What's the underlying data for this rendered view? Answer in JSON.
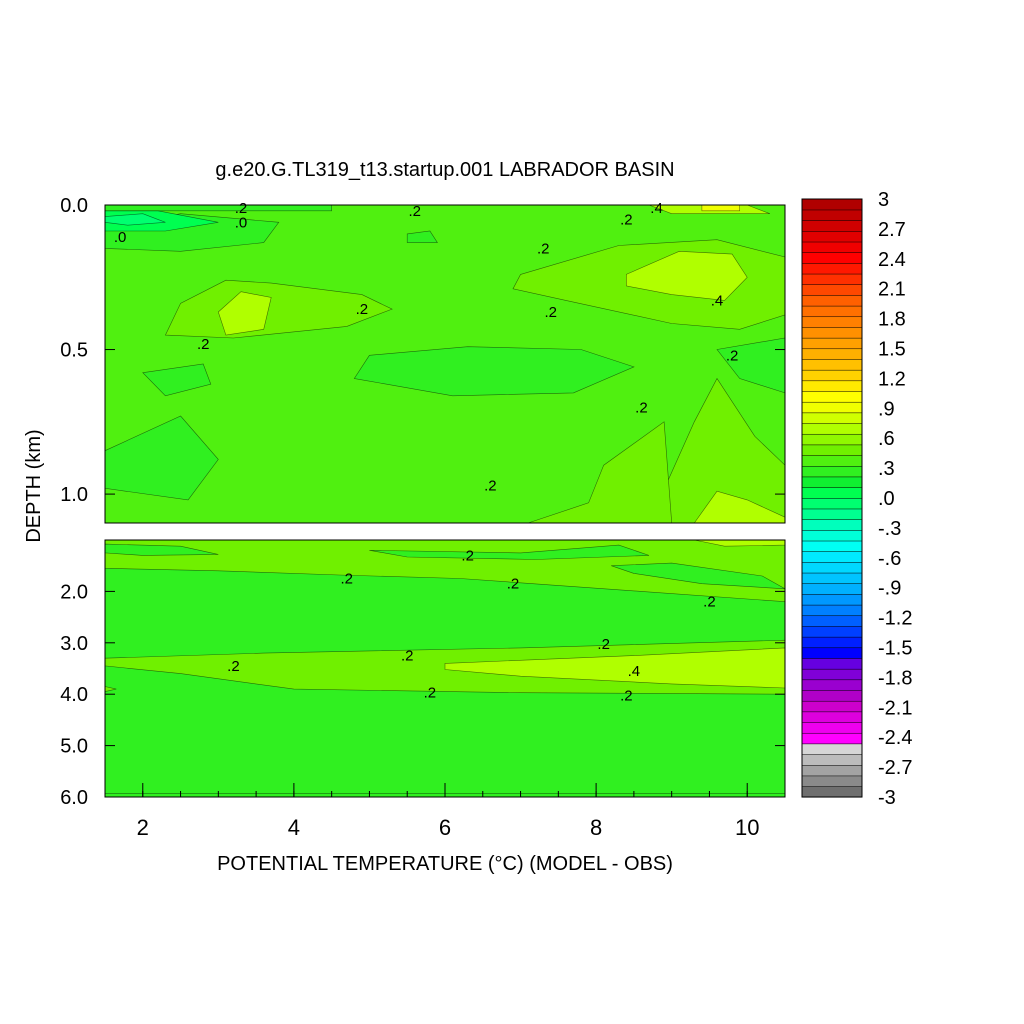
{
  "chart_data": {
    "type": "heatmap",
    "title": "g.e20.G.TL319_t13.startup.001 LABRADOR BASIN",
    "xlabel": "POTENTIAL TEMPERATURE (°C) (MODEL - OBS)",
    "ylabel": "DEPTH (km)",
    "xlim": [
      1.5,
      10.5
    ],
    "x_ticks": [
      "2",
      "4",
      "6",
      "8",
      "10"
    ],
    "x_tick_values": [
      2,
      4,
      6,
      8,
      10
    ],
    "x_minor_step": 0.5,
    "panels": [
      {
        "name": "upper",
        "ylim": [
          0.0,
          1.1
        ],
        "y_ticks": [
          "0.0",
          "0.5",
          "1.0"
        ],
        "y_tick_values": [
          0.0,
          0.5,
          1.0
        ],
        "background_value": 0.15,
        "regions": [
          {
            "value": 0.25,
            "points": [
              [
                3.7,
                0.27
              ],
              [
                4.9,
                0.31
              ],
              [
                5.3,
                0.36
              ],
              [
                4.7,
                0.42
              ],
              [
                3.2,
                0.46
              ],
              [
                2.3,
                0.45
              ],
              [
                2.5,
                0.34
              ],
              [
                3.1,
                0.26
              ]
            ]
          },
          {
            "value": 0.45,
            "points": [
              [
                3.3,
                0.3
              ],
              [
                3.7,
                0.32
              ],
              [
                3.6,
                0.43
              ],
              [
                3.1,
                0.45
              ],
              [
                3.0,
                0.37
              ]
            ]
          },
          {
            "value": 0.25,
            "points": [
              [
                7.0,
                0.24
              ],
              [
                8.3,
                0.14
              ],
              [
                9.6,
                0.12
              ],
              [
                10.5,
                0.18
              ],
              [
                10.5,
                0.38
              ],
              [
                9.9,
                0.43
              ],
              [
                9.0,
                0.41
              ],
              [
                7.6,
                0.33
              ],
              [
                6.9,
                0.29
              ]
            ]
          },
          {
            "value": 0.45,
            "points": [
              [
                8.4,
                0.24
              ],
              [
                9.1,
                0.16
              ],
              [
                9.8,
                0.17
              ],
              [
                10.0,
                0.25
              ],
              [
                9.7,
                0.33
              ],
              [
                9.0,
                0.31
              ],
              [
                8.4,
                0.28
              ]
            ]
          },
          {
            "value": 0.05,
            "points": [
              [
                5.0,
                0.52
              ],
              [
                6.3,
                0.49
              ],
              [
                7.8,
                0.5
              ],
              [
                8.5,
                0.56
              ],
              [
                7.7,
                0.65
              ],
              [
                6.1,
                0.66
              ],
              [
                4.8,
                0.6
              ]
            ]
          },
          {
            "value": 0.05,
            "points": [
              [
                1.5,
                0.85
              ],
              [
                2.5,
                0.73
              ],
              [
                3.0,
                0.88
              ],
              [
                2.6,
                1.02
              ],
              [
                1.5,
                0.98
              ]
            ]
          },
          {
            "value": 0.05,
            "points": [
              [
                2.0,
                0.58
              ],
              [
                2.8,
                0.55
              ],
              [
                2.9,
                0.62
              ],
              [
                2.3,
                0.66
              ]
            ]
          },
          {
            "value": 0.05,
            "points": [
              [
                9.6,
                0.5
              ],
              [
                10.5,
                0.46
              ],
              [
                10.5,
                0.65
              ],
              [
                9.9,
                0.6
              ]
            ]
          },
          {
            "value": 0.25,
            "points": [
              [
                8.7,
                1.1
              ],
              [
                9.3,
                0.75
              ],
              [
                9.6,
                0.6
              ],
              [
                10.1,
                0.8
              ],
              [
                10.5,
                0.9
              ],
              [
                10.5,
                1.1
              ]
            ]
          },
          {
            "value": 0.45,
            "points": [
              [
                9.3,
                1.1
              ],
              [
                9.6,
                0.99
              ],
              [
                10.0,
                1.02
              ],
              [
                10.5,
                1.08
              ],
              [
                10.5,
                1.1
              ]
            ]
          },
          {
            "value": 0.25,
            "points": [
              [
                7.1,
                1.1
              ],
              [
                7.9,
                1.03
              ],
              [
                8.1,
                0.9
              ],
              [
                8.9,
                0.75
              ],
              [
                9.0,
                1.1
              ]
            ]
          },
          {
            "value": 0.05,
            "points": [
              [
                1.5,
                0.08
              ],
              [
                2.5,
                0.03
              ],
              [
                3.8,
                0.06
              ],
              [
                3.6,
                0.13
              ],
              [
                2.5,
                0.16
              ],
              [
                1.5,
                0.15
              ]
            ]
          },
          {
            "value": -0.12,
            "points": [
              [
                1.5,
                0.02
              ],
              [
                2.2,
                0.02
              ],
              [
                3.0,
                0.06
              ],
              [
                2.3,
                0.09
              ],
              [
                1.5,
                0.09
              ]
            ]
          },
          {
            "value": -0.28,
            "points": [
              [
                1.5,
                0.04
              ],
              [
                2.0,
                0.03
              ],
              [
                2.3,
                0.06
              ],
              [
                1.8,
                0.07
              ],
              [
                1.5,
                0.06
              ]
            ]
          },
          {
            "value": 0.05,
            "points": [
              [
                5.5,
                0.1
              ],
              [
                5.8,
                0.09
              ],
              [
                5.9,
                0.13
              ],
              [
                5.5,
                0.13
              ]
            ]
          },
          {
            "value": 0.05,
            "points": [
              [
                1.5,
                0.0
              ],
              [
                4.5,
                0.0
              ],
              [
                4.5,
                0.02
              ],
              [
                1.5,
                0.02
              ]
            ]
          },
          {
            "value": 0.45,
            "points": [
              [
                8.7,
                0.0
              ],
              [
                10.0,
                0.0
              ],
              [
                10.3,
                0.03
              ],
              [
                9.0,
                0.03
              ]
            ]
          },
          {
            "value": 0.6,
            "points": [
              [
                9.4,
                0.0
              ],
              [
                9.9,
                0.0
              ],
              [
                9.9,
                0.02
              ],
              [
                9.4,
                0.02
              ]
            ]
          }
        ],
        "contour_labels": [
          {
            "text": ".2",
            "x": 3.3,
            "y": 0.01
          },
          {
            "text": ".0",
            "x": 3.3,
            "y": 0.06
          },
          {
            "text": ".0",
            "x": 1.7,
            "y": 0.11
          },
          {
            "text": ".2",
            "x": 5.6,
            "y": 0.02
          },
          {
            "text": ".2",
            "x": 8.4,
            "y": 0.05
          },
          {
            "text": ".4",
            "x": 8.8,
            "y": 0.01
          },
          {
            "text": ".2",
            "x": 7.3,
            "y": 0.15
          },
          {
            "text": ".4",
            "x": 9.6,
            "y": 0.33
          },
          {
            "text": ".2",
            "x": 4.9,
            "y": 0.36
          },
          {
            "text": ".2",
            "x": 7.4,
            "y": 0.37
          },
          {
            "text": ".2",
            "x": 2.8,
            "y": 0.48
          },
          {
            "text": ".2",
            "x": 9.8,
            "y": 0.52
          },
          {
            "text": ".2",
            "x": 8.6,
            "y": 0.7
          },
          {
            "text": ".2",
            "x": 6.6,
            "y": 0.97
          }
        ]
      },
      {
        "name": "lower",
        "ylim": [
          1.0,
          6.0
        ],
        "y_ticks": [
          "2.0",
          "3.0",
          "4.0",
          "5.0",
          "6.0"
        ],
        "y_tick_values": [
          2.0,
          3.0,
          4.0,
          5.0,
          6.0
        ],
        "background_value": 0.05,
        "regions": [
          {
            "value": 0.25,
            "points": [
              [
                1.5,
                1.0
              ],
              [
                10.5,
                1.0
              ],
              [
                10.5,
                2.2
              ],
              [
                8.6,
                2.0
              ],
              [
                6.2,
                1.75
              ],
              [
                4.6,
                1.68
              ],
              [
                3.0,
                1.6
              ],
              [
                1.5,
                1.55
              ]
            ]
          },
          {
            "value": 0.05,
            "points": [
              [
                5.0,
                1.2
              ],
              [
                7.0,
                1.25
              ],
              [
                8.3,
                1.1
              ],
              [
                8.7,
                1.3
              ],
              [
                7.2,
                1.38
              ],
              [
                5.5,
                1.33
              ]
            ]
          },
          {
            "value": 0.05,
            "points": [
              [
                1.5,
                1.08
              ],
              [
                2.5,
                1.12
              ],
              [
                3.0,
                1.28
              ],
              [
                2.0,
                1.3
              ],
              [
                1.5,
                1.25
              ]
            ]
          },
          {
            "value": 0.05,
            "points": [
              [
                8.2,
                1.5
              ],
              [
                9.0,
                1.45
              ],
              [
                10.2,
                1.7
              ],
              [
                10.5,
                1.95
              ],
              [
                9.4,
                1.85
              ],
              [
                8.5,
                1.65
              ]
            ]
          },
          {
            "value": 0.45,
            "points": [
              [
                9.3,
                1.0
              ],
              [
                10.5,
                1.0
              ],
              [
                10.5,
                1.1
              ],
              [
                9.7,
                1.12
              ]
            ]
          },
          {
            "value": 0.25,
            "points": [
              [
                1.5,
                3.3
              ],
              [
                3.6,
                3.2
              ],
              [
                7.0,
                3.1
              ],
              [
                10.5,
                2.95
              ],
              [
                10.5,
                4.0
              ],
              [
                7.0,
                3.97
              ],
              [
                4.0,
                3.9
              ],
              [
                2.5,
                3.6
              ],
              [
                1.5,
                3.45
              ]
            ]
          },
          {
            "value": 0.45,
            "points": [
              [
                6.0,
                3.4
              ],
              [
                8.5,
                3.25
              ],
              [
                10.5,
                3.1
              ],
              [
                10.5,
                3.88
              ],
              [
                9.0,
                3.8
              ],
              [
                7.0,
                3.65
              ],
              [
                6.0,
                3.52
              ]
            ]
          },
          {
            "value": 0.25,
            "points": [
              [
                1.5,
                3.85
              ],
              [
                1.65,
                3.9
              ],
              [
                1.5,
                3.95
              ]
            ]
          },
          {
            "value": 0.05,
            "points": [
              [
                1.5,
                5.93
              ],
              [
                10.5,
                5.93
              ],
              [
                10.5,
                6.0
              ],
              [
                1.5,
                6.0
              ]
            ]
          }
        ],
        "contour_labels": [
          {
            "text": ".2",
            "x": 6.3,
            "y": 1.3
          },
          {
            "text": ".2",
            "x": 4.7,
            "y": 1.75
          },
          {
            "text": ".2",
            "x": 6.9,
            "y": 1.85
          },
          {
            "text": ".2",
            "x": 9.5,
            "y": 2.2
          },
          {
            "text": ".2",
            "x": 8.1,
            "y": 3.02
          },
          {
            "text": ".2",
            "x": 5.5,
            "y": 3.25
          },
          {
            "text": ".2",
            "x": 3.2,
            "y": 3.45
          },
          {
            "text": ".4",
            "x": 8.5,
            "y": 3.55
          },
          {
            "text": ".2",
            "x": 5.8,
            "y": 3.97
          },
          {
            "text": ".2",
            "x": 8.4,
            "y": 4.03
          }
        ]
      }
    ],
    "colorbar": {
      "min": -3,
      "max": 3,
      "step": 0.1,
      "labels": [
        "3",
        "2.7",
        "2.4",
        "2.1",
        "1.8",
        "1.5",
        "1.2",
        ".9",
        ".6",
        ".3",
        ".0",
        "-.3",
        "-.6",
        "-.9",
        "-1.2",
        "-1.5",
        "-1.8",
        "-2.1",
        "-2.4",
        "-2.7",
        "-3"
      ],
      "colors": {
        "gray": [
          "#6f6f6f",
          "#8a8a8a",
          "#a3a3a3",
          "#bcbcbc",
          "#d6d6d6"
        ],
        "magenta": [
          "#ff00ff",
          "#ee00ee",
          "#dd00dd",
          "#cc00cc"
        ],
        "purple": [
          "#b000c8",
          "#9a00d0",
          "#8000d8",
          "#6600e0"
        ],
        "blue": [
          "#0000ff",
          "#0020ff",
          "#0040ff",
          "#0060ff",
          "#0080ff",
          "#0098ff",
          "#00b0ff",
          "#00c4ff",
          "#00d8ff",
          "#00eaff",
          "#00fff4",
          "#00ffd8",
          "#00ffbc"
        ],
        "green": [
          "#00ff90",
          "#00ff70",
          "#00ff50",
          "#10f030",
          "#30f020",
          "#50f010",
          "#70f000",
          "#90f800",
          "#b0ff00",
          "#d0ff00",
          "#f0ff00"
        ],
        "yellow_orange": [
          "#ffff00",
          "#ffea00",
          "#ffd200",
          "#ffc000",
          "#ffb000",
          "#ffa000",
          "#ff9000",
          "#ff8000",
          "#ff7000"
        ],
        "red": [
          "#ff6000",
          "#ff4800",
          "#ff3000",
          "#ff1800",
          "#ff0000",
          "#f00000",
          "#e00000",
          "#d00000",
          "#c00000",
          "#b00000"
        ]
      }
    }
  }
}
